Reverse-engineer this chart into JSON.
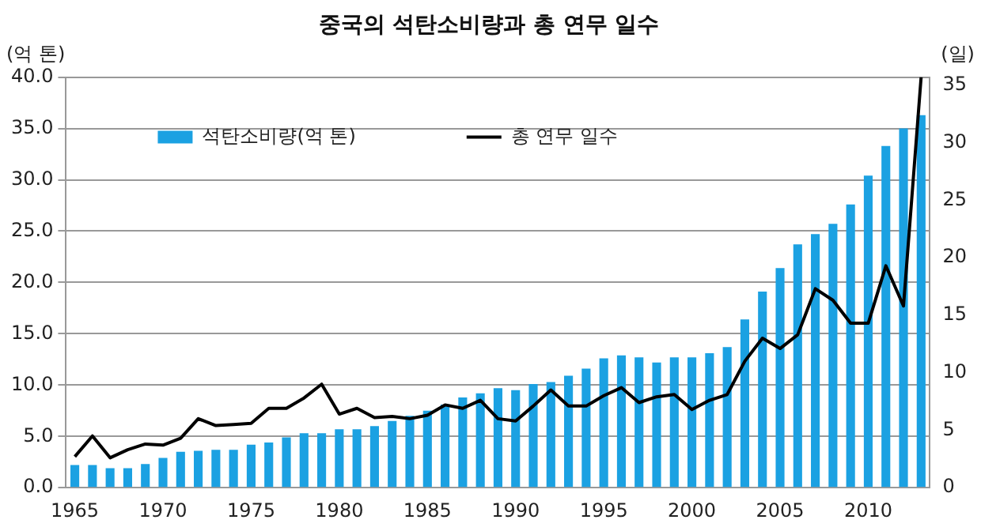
{
  "chart_data": {
    "type": "bar",
    "title": "중국의 석탄소비량과 총 연무 일수",
    "ylabel": "(억 톤)",
    "y2label": "(일)",
    "categories": [
      "1965",
      null,
      null,
      null,
      null,
      "1970",
      null,
      null,
      null,
      null,
      "1975",
      null,
      null,
      null,
      null,
      "1980",
      null,
      null,
      null,
      null,
      "1985",
      null,
      null,
      null,
      null,
      "1990",
      null,
      null,
      null,
      null,
      "1995",
      null,
      null,
      null,
      null,
      "2000",
      null,
      null,
      null,
      null,
      "2005",
      null,
      null,
      null,
      null,
      "2010",
      null,
      null,
      null
    ],
    "series": [
      {
        "name": "석탄소비량(억 톤)",
        "color": "#1ba1e2",
        "values": [
          2.2,
          2.2,
          1.9,
          1.9,
          2.3,
          2.9,
          3.5,
          3.6,
          3.7,
          3.7,
          4.2,
          4.4,
          4.9,
          5.3,
          5.3,
          5.7,
          5.7,
          6.0,
          6.5,
          7.0,
          7.5,
          8.1,
          8.8,
          9.2,
          9.7,
          9.5,
          10.1,
          10.3,
          10.9,
          11.6,
          12.6,
          12.9,
          12.7,
          12.2,
          12.7,
          12.7,
          13.1,
          13.7,
          16.4,
          19.1,
          21.4,
          23.7,
          24.7,
          25.7,
          27.6,
          30.4,
          33.3,
          35.0,
          36.3
        ]
      },
      {
        "name": "총 연무 일수",
        "type": "line",
        "axis": "y2",
        "color": "#000000",
        "values": [
          2.7,
          4.5,
          2.6,
          3.3,
          3.8,
          3.7,
          4.3,
          6.0,
          5.4,
          5.5,
          5.6,
          6.9,
          6.9,
          7.8,
          9.0,
          6.4,
          6.9,
          6.1,
          6.2,
          6.0,
          6.3,
          7.2,
          6.9,
          7.6,
          6.0,
          5.8,
          7.1,
          8.5,
          7.1,
          7.1,
          8.0,
          8.7,
          7.4,
          7.9,
          8.1,
          6.8,
          7.6,
          8.1,
          11.0,
          13.0,
          12.1,
          13.3,
          17.3,
          16.3,
          14.3,
          14.3,
          19.3,
          15.8,
          35.7
        ]
      }
    ],
    "ylim": [
      0,
      40
    ],
    "yticks": [
      {
        "value": 0,
        "label": "0.0"
      },
      {
        "value": 5,
        "label": "5.0"
      },
      {
        "value": 10,
        "label": "10.0"
      },
      {
        "value": 15,
        "label": "15.0"
      },
      {
        "value": 20,
        "label": "20.0"
      },
      {
        "value": 25,
        "label": "25.0"
      },
      {
        "value": 30,
        "label": "30.0"
      },
      {
        "value": 35,
        "label": "35.0"
      },
      {
        "value": 40,
        "label": "40.0"
      }
    ],
    "y2lim": [
      0,
      35.7
    ],
    "y2ticks": [
      0,
      5,
      10,
      15,
      20,
      25,
      30,
      35
    ],
    "grid": "y",
    "legend": "top",
    "marker": "none",
    "line_style": "solid"
  }
}
